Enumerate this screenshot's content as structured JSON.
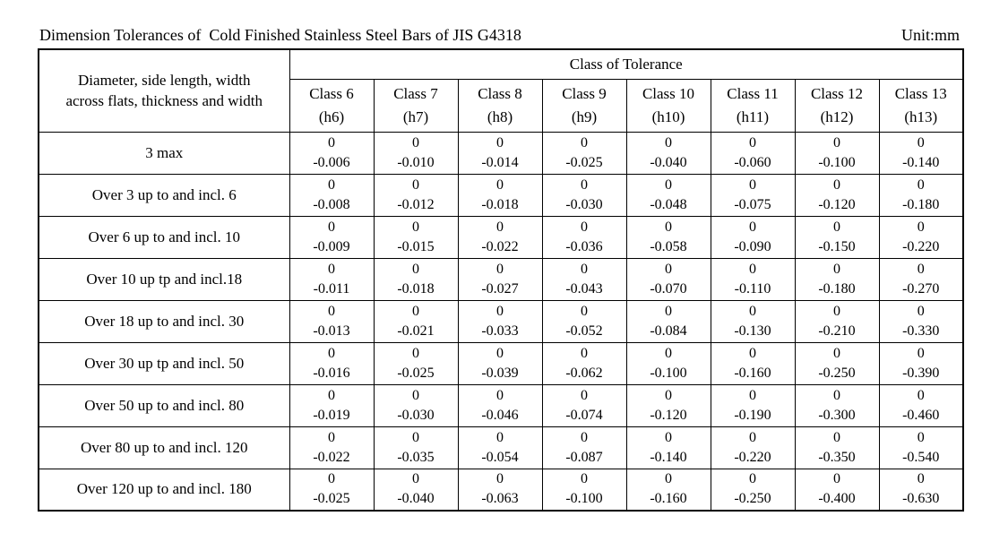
{
  "page": {
    "title": "Dimension Tolerances of  Cold Finished Stainless Steel Bars of JIS G4318",
    "unit": "Unit:mm"
  },
  "table": {
    "corner_header": {
      "line1": "Diameter, side length, width",
      "line2": "across flats, thickness and width"
    },
    "group_header": "Class of Tolerance",
    "class_columns": [
      {
        "name": "Class 6",
        "grade": "(h6)"
      },
      {
        "name": "Class 7",
        "grade": "(h7)"
      },
      {
        "name": "Class 8",
        "grade": "(h8)"
      },
      {
        "name": "Class 9",
        "grade": "(h9)"
      },
      {
        "name": "Class 10",
        "grade": "(h10)"
      },
      {
        "name": "Class 11",
        "grade": "(h11)"
      },
      {
        "name": "Class 12",
        "grade": "(h12)"
      },
      {
        "name": "Class 13",
        "grade": "(h13)"
      }
    ],
    "rows": [
      {
        "label": "3 max",
        "tolerances": [
          {
            "upper": "0",
            "lower": "-0.006"
          },
          {
            "upper": "0",
            "lower": "-0.010"
          },
          {
            "upper": "0",
            "lower": "-0.014"
          },
          {
            "upper": "0",
            "lower": "-0.025"
          },
          {
            "upper": "0",
            "lower": "-0.040"
          },
          {
            "upper": "0",
            "lower": "-0.060"
          },
          {
            "upper": "0",
            "lower": "-0.100"
          },
          {
            "upper": "0",
            "lower": "-0.140"
          }
        ]
      },
      {
        "label": "Over 3 up to and incl. 6",
        "tolerances": [
          {
            "upper": "0",
            "lower": "-0.008"
          },
          {
            "upper": "0",
            "lower": "-0.012"
          },
          {
            "upper": "0",
            "lower": "-0.018"
          },
          {
            "upper": "0",
            "lower": "-0.030"
          },
          {
            "upper": "0",
            "lower": "-0.048"
          },
          {
            "upper": "0",
            "lower": "-0.075"
          },
          {
            "upper": "0",
            "lower": "-0.120"
          },
          {
            "upper": "0",
            "lower": "-0.180"
          }
        ]
      },
      {
        "label": "Over 6 up to and incl. 10",
        "tolerances": [
          {
            "upper": "0",
            "lower": "-0.009"
          },
          {
            "upper": "0",
            "lower": "-0.015"
          },
          {
            "upper": "0",
            "lower": "-0.022"
          },
          {
            "upper": "0",
            "lower": "-0.036"
          },
          {
            "upper": "0",
            "lower": "-0.058"
          },
          {
            "upper": "0",
            "lower": "-0.090"
          },
          {
            "upper": "0",
            "lower": "-0.150"
          },
          {
            "upper": "0",
            "lower": "-0.220"
          }
        ]
      },
      {
        "label": "Over 10 up tp and incl.18",
        "tolerances": [
          {
            "upper": "0",
            "lower": "-0.011"
          },
          {
            "upper": "0",
            "lower": "-0.018"
          },
          {
            "upper": "0",
            "lower": "-0.027"
          },
          {
            "upper": "0",
            "lower": "-0.043"
          },
          {
            "upper": "0",
            "lower": "-0.070"
          },
          {
            "upper": "0",
            "lower": "-0.110"
          },
          {
            "upper": "0",
            "lower": "-0.180"
          },
          {
            "upper": "0",
            "lower": "-0.270"
          }
        ]
      },
      {
        "label": "Over 18 up to and incl. 30",
        "tolerances": [
          {
            "upper": "0",
            "lower": "-0.013"
          },
          {
            "upper": "0",
            "lower": "-0.021"
          },
          {
            "upper": "0",
            "lower": "-0.033"
          },
          {
            "upper": "0",
            "lower": "-0.052"
          },
          {
            "upper": "0",
            "lower": "-0.084"
          },
          {
            "upper": "0",
            "lower": "-0.130"
          },
          {
            "upper": "0",
            "lower": "-0.210"
          },
          {
            "upper": "0",
            "lower": "-0.330"
          }
        ]
      },
      {
        "label": "Over 30 up tp and incl. 50",
        "tolerances": [
          {
            "upper": "0",
            "lower": "-0.016"
          },
          {
            "upper": "0",
            "lower": "-0.025"
          },
          {
            "upper": "0",
            "lower": "-0.039"
          },
          {
            "upper": "0",
            "lower": "-0.062"
          },
          {
            "upper": "0",
            "lower": "-0.100"
          },
          {
            "upper": "0",
            "lower": "-0.160"
          },
          {
            "upper": "0",
            "lower": "-0.250"
          },
          {
            "upper": "0",
            "lower": "-0.390"
          }
        ]
      },
      {
        "label": "Over 50 up to and incl. 80",
        "tolerances": [
          {
            "upper": "0",
            "lower": "-0.019"
          },
          {
            "upper": "0",
            "lower": "-0.030"
          },
          {
            "upper": "0",
            "lower": "-0.046"
          },
          {
            "upper": "0",
            "lower": "-0.074"
          },
          {
            "upper": "0",
            "lower": "-0.120"
          },
          {
            "upper": "0",
            "lower": "-0.190"
          },
          {
            "upper": "0",
            "lower": "-0.300"
          },
          {
            "upper": "0",
            "lower": "-0.460"
          }
        ]
      },
      {
        "label": "Over 80 up to and incl. 120",
        "tolerances": [
          {
            "upper": "0",
            "lower": "-0.022"
          },
          {
            "upper": "0",
            "lower": "-0.035"
          },
          {
            "upper": "0",
            "lower": "-0.054"
          },
          {
            "upper": "0",
            "lower": "-0.087"
          },
          {
            "upper": "0",
            "lower": "-0.140"
          },
          {
            "upper": "0",
            "lower": "-0.220"
          },
          {
            "upper": "0",
            "lower": "-0.350"
          },
          {
            "upper": "0",
            "lower": "-0.540"
          }
        ]
      },
      {
        "label": "Over 120 up to and incl. 180",
        "tolerances": [
          {
            "upper": "0",
            "lower": "-0.025"
          },
          {
            "upper": "0",
            "lower": "-0.040"
          },
          {
            "upper": "0",
            "lower": "-0.063"
          },
          {
            "upper": "0",
            "lower": "-0.100"
          },
          {
            "upper": "0",
            "lower": "-0.160"
          },
          {
            "upper": "0",
            "lower": "-0.250"
          },
          {
            "upper": "0",
            "lower": "-0.400"
          },
          {
            "upper": "0",
            "lower": "-0.630"
          }
        ]
      }
    ]
  }
}
